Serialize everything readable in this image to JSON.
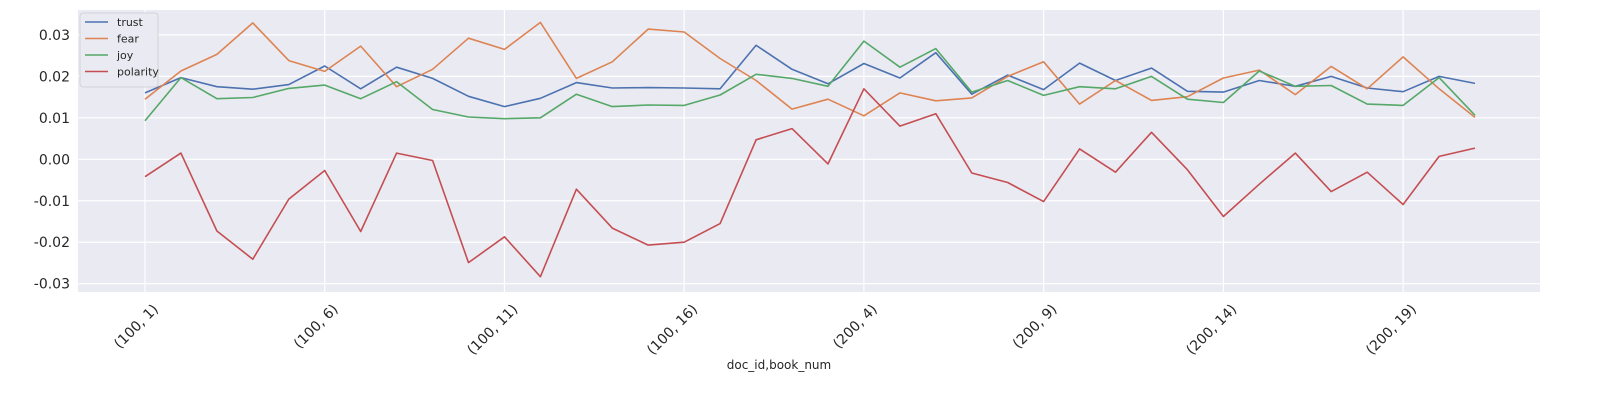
{
  "chart_data": {
    "type": "line",
    "title": "",
    "xlabel": "doc_id,book_num",
    "ylabel": "",
    "grid": true,
    "legend_position": "top-left",
    "ylim": [
      -0.032,
      0.036
    ],
    "y_ticks": [
      -0.03,
      -0.02,
      -0.01,
      0.0,
      0.01,
      0.02,
      0.03
    ],
    "y_tick_labels": [
      "-0.03",
      "-0.02",
      "-0.01",
      "0.00",
      "0.01",
      "0.02",
      "0.03"
    ],
    "x_categories": [
      "(100, 1)",
      "(100, 2)",
      "(100, 3)",
      "(100, 4)",
      "(100, 5)",
      "(100, 6)",
      "(100, 7)",
      "(100, 8)",
      "(100, 9)",
      "(100, 10)",
      "(100, 11)",
      "(100, 12)",
      "(100, 13)",
      "(100, 14)",
      "(100, 15)",
      "(100, 16)",
      "(100, 17)",
      "(200, 1)",
      "(200, 2)",
      "(200, 3)",
      "(200, 4)",
      "(200, 5)",
      "(200, 6)",
      "(200, 7)",
      "(200, 8)",
      "(200, 9)",
      "(200, 10)",
      "(200, 11)",
      "(200, 12)",
      "(200, 13)",
      "(200, 14)",
      "(200, 15)",
      "(200, 16)",
      "(200, 17)",
      "(200, 18)",
      "(200, 19)",
      "(200, 20)",
      "(200, 21)"
    ],
    "x_tick_labels": [
      "(100, 1)",
      "(100, 6)",
      "(100, 11)",
      "(100, 16)",
      "(200, 4)",
      "(200, 9)",
      "(200, 14)",
      "(200, 19)"
    ],
    "x_tick_indices": [
      0,
      5,
      10,
      15,
      20,
      25,
      30,
      35
    ],
    "series": [
      {
        "name": "trust",
        "color": "#4c72b0",
        "values": [
          0.016,
          0.0197,
          0.0175,
          0.0169,
          0.018,
          0.0225,
          0.017,
          0.0222,
          0.0195,
          0.0152,
          0.0127,
          0.0147,
          0.0185,
          0.0172,
          0.0173,
          0.0172,
          0.017,
          0.0275,
          0.0217,
          0.0182,
          0.0231,
          0.0196,
          0.0257,
          0.0157,
          0.0203,
          0.0168,
          0.0232,
          0.019,
          0.022,
          0.0164,
          0.0162,
          0.019,
          0.0176,
          0.02,
          0.0172,
          0.0163,
          0.02,
          0.0183
        ]
      },
      {
        "name": "fear",
        "color": "#dd8452",
        "values": [
          0.0145,
          0.0213,
          0.0253,
          0.0329,
          0.0238,
          0.0212,
          0.0273,
          0.0175,
          0.0217,
          0.0292,
          0.0265,
          0.033,
          0.0195,
          0.0235,
          0.0314,
          0.0307,
          0.0243,
          0.019,
          0.0121,
          0.0145,
          0.0105,
          0.016,
          0.0141,
          0.0148,
          0.02,
          0.0235,
          0.0133,
          0.019,
          0.0142,
          0.0151,
          0.0196,
          0.0215,
          0.0156,
          0.0224,
          0.017,
          0.0247,
          0.017,
          0.0101
        ]
      },
      {
        "name": "joy",
        "color": "#55a868",
        "values": [
          0.0093,
          0.0197,
          0.0146,
          0.0149,
          0.0171,
          0.0179,
          0.0146,
          0.0187,
          0.012,
          0.0102,
          0.0098,
          0.01,
          0.0157,
          0.0127,
          0.0131,
          0.013,
          0.0155,
          0.0205,
          0.0195,
          0.0176,
          0.0285,
          0.0222,
          0.0267,
          0.0162,
          0.019,
          0.0154,
          0.0175,
          0.017,
          0.02,
          0.0145,
          0.0137,
          0.0213,
          0.0176,
          0.0178,
          0.0133,
          0.013,
          0.0197,
          0.0106
        ]
      },
      {
        "name": "polarity",
        "color": "#c44e52",
        "values": [
          -0.0042,
          0.0015,
          -0.0173,
          -0.0241,
          -0.0096,
          -0.0027,
          -0.0174,
          0.0015,
          -0.0003,
          -0.0249,
          -0.0187,
          -0.0283,
          -0.0072,
          -0.0166,
          -0.0207,
          -0.02,
          -0.0155,
          0.0047,
          0.0074,
          -0.0011,
          0.017,
          0.008,
          0.011,
          -0.0033,
          -0.0056,
          -0.0102,
          0.0025,
          -0.0031,
          0.0065,
          -0.0025,
          -0.0138,
          -0.006,
          0.0015,
          -0.0078,
          -0.0031,
          -0.0109,
          0.0007,
          0.0027
        ]
      }
    ]
  }
}
